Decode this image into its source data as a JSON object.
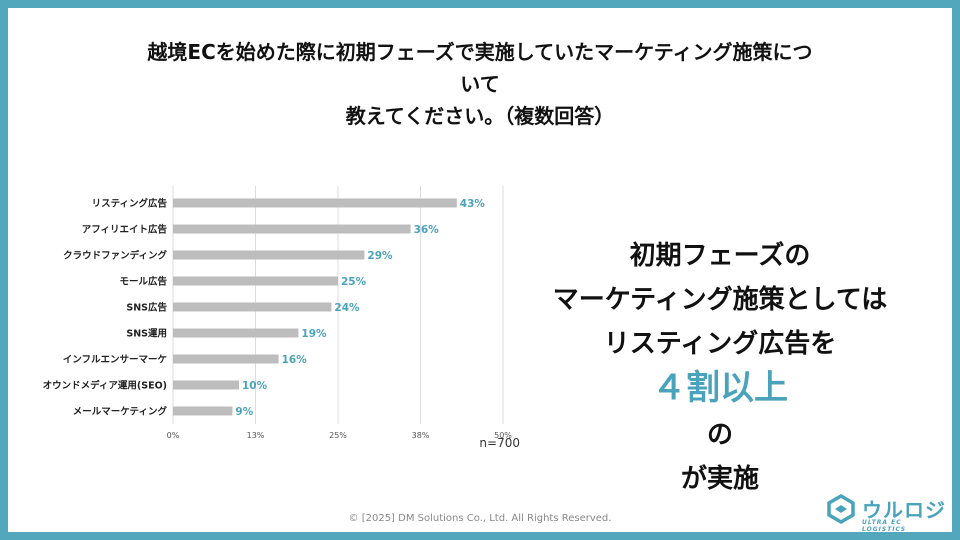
{
  "title": {
    "line1": "越境ECを始めた際に初期フェーズで実施していたマーケティング施策につ",
    "line2": "いて",
    "line3": "教えてください。（複数回答）"
  },
  "chart_data": {
    "type": "bar",
    "orientation": "horizontal",
    "categories": [
      "リスティング広告",
      "アフィリエイト広告",
      "クラウドファンディング",
      "モール広告",
      "SNS広告",
      "SNS運用",
      "インフルエンサーマーケ",
      "オウンドメディア運用(SEO)",
      "メールマーケティング"
    ],
    "values": [
      43,
      36,
      29,
      25,
      24,
      19,
      16,
      10,
      9
    ],
    "value_labels": [
      "43%",
      "36%",
      "29%",
      "25%",
      "24%",
      "19%",
      "16%",
      "10%",
      "9%"
    ],
    "ticks": [
      0,
      12.5,
      25,
      37.5,
      50
    ],
    "tick_labels": [
      "0%",
      "13%",
      "25%",
      "38%",
      "50%"
    ],
    "xlim": [
      0,
      50
    ],
    "grid": true,
    "bar_color": "#bdbdbd",
    "label_color": "#4aa3bb"
  },
  "sample_note": "n=700",
  "callout": {
    "line1": "初期フェーズの",
    "line2": "マーケティング施策としては",
    "line3_prefix": "リスティング広告を",
    "line3_highlight": "４割以上",
    "line4": "の",
    "line5": "が実施"
  },
  "footer": "© [2025] DM Solutions Co., Ltd. All Rights Reserved.",
  "logo": {
    "name": "ウルロジ",
    "tagline": "ULTRA EC LOGISTICS",
    "color": "#4aa3bb"
  }
}
